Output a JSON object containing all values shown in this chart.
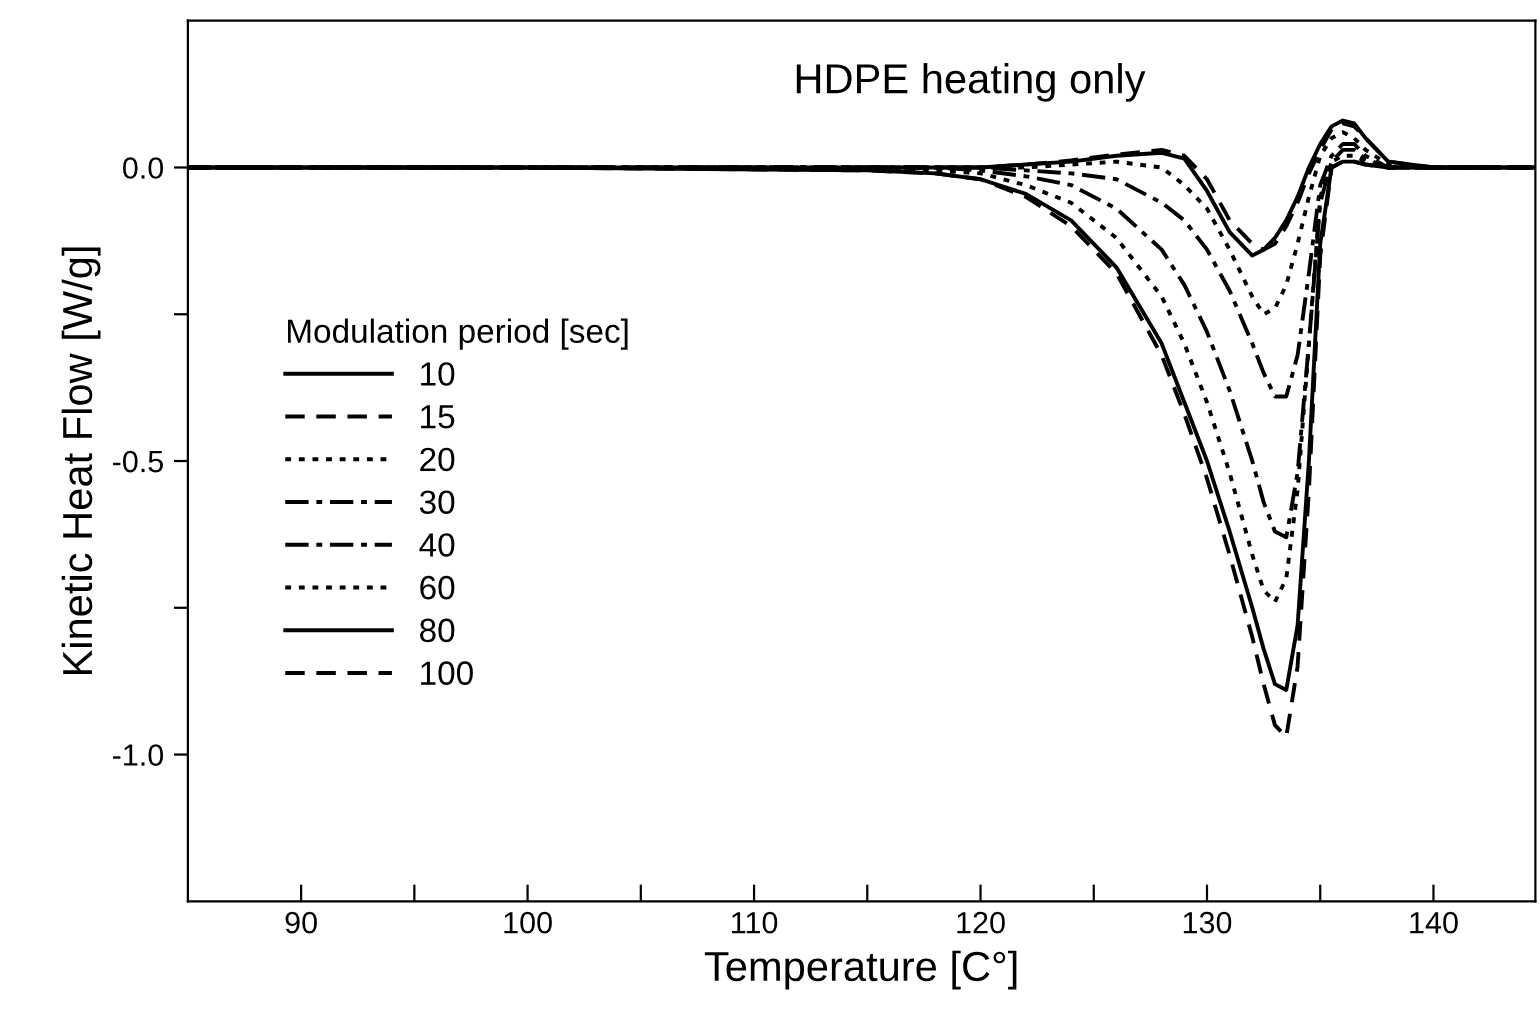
{
  "chart_data": {
    "type": "line",
    "title": "HDPE heating only",
    "xlabel": "Temperature [C°]",
    "ylabel": "Kinetic Heat Flow [W/g]",
    "legend_title": "Modulation period [sec]",
    "legend": "left",
    "grid": false,
    "xlim": [
      85,
      144.5
    ],
    "ylim": [
      -1.25,
      0.25
    ],
    "xticks": [
      90,
      {
        "value": 95,
        "label": null
      },
      100,
      {
        "value": 105,
        "label": null
      },
      110,
      {
        "value": 115,
        "label": null
      },
      120,
      {
        "value": 125,
        "label": null
      },
      130,
      {
        "value": 135,
        "label": null
      },
      140
    ],
    "yticks": [
      {
        "value": -1.0,
        "label": "-1.0"
      },
      {
        "value": -0.75,
        "label": null
      },
      {
        "value": -0.5,
        "label": "-0.5"
      },
      {
        "value": -0.25,
        "label": null
      },
      {
        "value": 0.0,
        "label": "0.0"
      }
    ],
    "x": [
      85,
      100,
      115,
      118,
      120,
      122,
      124,
      126,
      128,
      129,
      130,
      131,
      132,
      132.5,
      133,
      133.5,
      134,
      134.5,
      135,
      135.5,
      136,
      136.5,
      137,
      138,
      140,
      144.5
    ],
    "series": [
      {
        "name": "10",
        "color": "#000000",
        "line_style": "solid",
        "values": [
          0,
          0,
          -0.005,
          -0.01,
          -0.02,
          -0.045,
          -0.09,
          -0.17,
          -0.3,
          -0.4,
          -0.5,
          -0.62,
          -0.75,
          -0.82,
          -0.88,
          -0.89,
          -0.78,
          -0.5,
          -0.13,
          0,
          0.01,
          0.01,
          0.005,
          0,
          0,
          0
        ]
      },
      {
        "name": "15",
        "color": "#000000",
        "line_style": "dashed",
        "values": [
          0,
          0,
          -0.005,
          -0.01,
          -0.02,
          -0.05,
          -0.1,
          -0.18,
          -0.32,
          -0.42,
          -0.53,
          -0.66,
          -0.8,
          -0.88,
          -0.95,
          -0.97,
          -0.85,
          -0.55,
          -0.15,
          0,
          0.01,
          0.01,
          0.005,
          0,
          0,
          0
        ]
      },
      {
        "name": "20",
        "color": "#000000",
        "line_style": "dotted",
        "values": [
          0,
          0,
          0,
          -0.005,
          -0.01,
          -0.03,
          -0.06,
          -0.12,
          -0.22,
          -0.3,
          -0.4,
          -0.52,
          -0.66,
          -0.72,
          -0.74,
          -0.7,
          -0.55,
          -0.3,
          -0.05,
          0.01,
          0.02,
          0.02,
          0.01,
          0,
          0,
          0
        ]
      },
      {
        "name": "30",
        "color": "#000000",
        "line_style": "dashdot",
        "values": [
          0,
          0,
          0,
          0,
          -0.005,
          -0.015,
          -0.03,
          -0.07,
          -0.14,
          -0.2,
          -0.28,
          -0.38,
          -0.5,
          -0.57,
          -0.62,
          -0.63,
          -0.52,
          -0.3,
          -0.06,
          0.01,
          0.03,
          0.03,
          0.015,
          0,
          0,
          0
        ]
      },
      {
        "name": "40",
        "color": "#000000",
        "line_style": "dashdot",
        "values": [
          0,
          0,
          0,
          0,
          0,
          -0.005,
          -0.01,
          -0.02,
          -0.06,
          -0.09,
          -0.14,
          -0.21,
          -0.3,
          -0.35,
          -0.39,
          -0.39,
          -0.32,
          -0.18,
          -0.03,
          0.02,
          0.04,
          0.04,
          0.02,
          0,
          0,
          0
        ]
      },
      {
        "name": "60",
        "color": "#000000",
        "line_style": "dotted",
        "values": [
          0,
          0,
          0,
          0,
          0,
          0,
          0.005,
          0.01,
          0.0,
          -0.03,
          -0.07,
          -0.14,
          -0.22,
          -0.25,
          -0.24,
          -0.2,
          -0.13,
          -0.05,
          0.02,
          0.05,
          0.06,
          0.05,
          0.03,
          0.005,
          0,
          0
        ]
      },
      {
        "name": "80",
        "color": "#000000",
        "line_style": "solid",
        "values": [
          0,
          0,
          0,
          0,
          0,
          0.005,
          0.01,
          0.02,
          0.025,
          0.015,
          -0.04,
          -0.11,
          -0.15,
          -0.14,
          -0.12,
          -0.09,
          -0.05,
          0,
          0.04,
          0.07,
          0.08,
          0.075,
          0.05,
          0.01,
          0,
          0
        ]
      },
      {
        "name": "100",
        "color": "#000000",
        "line_style": "dashed",
        "values": [
          0,
          0,
          0,
          0,
          0,
          0.005,
          0.012,
          0.022,
          0.03,
          0.02,
          -0.02,
          -0.09,
          -0.13,
          -0.14,
          -0.13,
          -0.1,
          -0.06,
          -0.01,
          0.03,
          0.065,
          0.075,
          0.07,
          0.05,
          0.01,
          0,
          0
        ]
      }
    ]
  }
}
